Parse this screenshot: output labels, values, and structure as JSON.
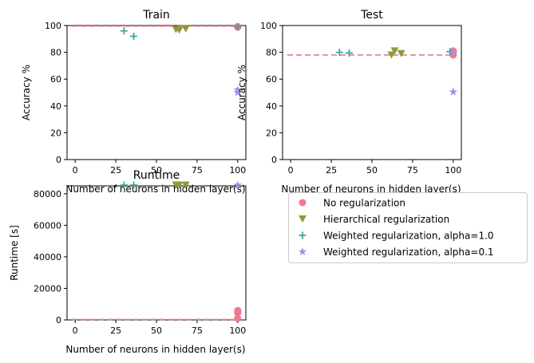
{
  "chart_data": [
    {
      "type": "scatter",
      "title": "Train",
      "xlabel": "Number of neurons in hidden layer(s)",
      "ylabel": "Accuracy %",
      "xlim": [
        -5,
        105
      ],
      "ylim": [
        0,
        100
      ],
      "xticks": [
        "0",
        "25",
        "50",
        "75",
        "100"
      ],
      "yticks": [
        "0",
        "20",
        "40",
        "60",
        "80",
        "100"
      ],
      "reference_line": 99.5,
      "series": [
        {
          "name": "No regularization",
          "marker": "circle",
          "color": "#f0788c",
          "x": [
            100,
            100,
            100
          ],
          "y": [
            99,
            98.8,
            99.2
          ]
        },
        {
          "name": "Hierarchical regularization",
          "marker": "triangle-down",
          "color": "#8c9a3c",
          "x": [
            62,
            64,
            68
          ],
          "y": [
            97,
            96.5,
            97.5
          ]
        },
        {
          "name": "Weighted regularization, alpha=1.0",
          "marker": "plus",
          "color": "#3aa7a3",
          "x": [
            30,
            36,
            100
          ],
          "y": [
            96,
            92,
            99
          ]
        },
        {
          "name": "Weighted regularization, alpha=0.1",
          "marker": "star",
          "color": "#a98de8",
          "x": [
            100,
            100
          ],
          "y": [
            52,
            50
          ]
        }
      ]
    },
    {
      "type": "scatter",
      "title": "Test",
      "xlabel": "Number of neurons in hidden layer(s)",
      "ylabel": "Accuracy %",
      "xlim": [
        -5,
        105
      ],
      "ylim": [
        0,
        100
      ],
      "xticks": [
        "0",
        "25",
        "50",
        "75",
        "100"
      ],
      "yticks": [
        "0",
        "20",
        "40",
        "60",
        "80",
        "100"
      ],
      "reference_line": 78,
      "series": [
        {
          "name": "No regularization",
          "marker": "circle",
          "color": "#f0788c",
          "x": [
            100,
            100,
            100
          ],
          "y": [
            78,
            80,
            81
          ]
        },
        {
          "name": "Hierarchical regularization",
          "marker": "triangle-down",
          "color": "#8c9a3c",
          "x": [
            62,
            64,
            68
          ],
          "y": [
            78,
            81,
            79
          ]
        },
        {
          "name": "Weighted regularization, alpha=1.0",
          "marker": "plus",
          "color": "#3aa7a3",
          "x": [
            30,
            36,
            98
          ],
          "y": [
            80,
            79.5,
            80.5
          ]
        },
        {
          "name": "Weighted regularization, alpha=0.1",
          "marker": "star",
          "color": "#a98de8",
          "x": [
            100,
            100
          ],
          "y": [
            50.5,
            80
          ]
        }
      ]
    },
    {
      "type": "scatter",
      "title": "Runtime",
      "xlabel": "Number of neurons in hidden layer(s)",
      "ylabel": "Runtime [s]",
      "xlim": [
        -5,
        105
      ],
      "ylim": [
        0,
        85000
      ],
      "xticks": [
        "0",
        "25",
        "50",
        "75",
        "100"
      ],
      "yticks": [
        "0",
        "20000",
        "40000",
        "60000",
        "80000"
      ],
      "reference_line": 300,
      "series": [
        {
          "name": "No regularization",
          "marker": "circle",
          "color": "#f0788c",
          "x": [
            100,
            100,
            100,
            100
          ],
          "y": [
            6000,
            5000,
            4500,
            1000
          ]
        },
        {
          "name": "Hierarchical regularization",
          "marker": "triangle-down",
          "color": "#8c9a3c",
          "x": [
            62,
            64,
            68
          ],
          "y": [
            85500,
            85500,
            85500
          ]
        },
        {
          "name": "Weighted regularization, alpha=1.0",
          "marker": "plus",
          "color": "#3aa7a3",
          "x": [
            30,
            36
          ],
          "y": [
            85500,
            85500
          ]
        },
        {
          "name": "Weighted regularization, alpha=0.1",
          "marker": "star",
          "color": "#a98de8",
          "x": [
            100
          ],
          "y": [
            85500
          ]
        }
      ]
    }
  ],
  "legend": {
    "placement": "lower-right",
    "items": [
      {
        "label": "No regularization",
        "marker": "circle",
        "color": "#f0788c"
      },
      {
        "label": "Hierarchical regularization",
        "marker": "triangle-down",
        "color": "#8c9a3c"
      },
      {
        "label": "Weighted regularization, alpha=1.0",
        "marker": "plus",
        "color": "#3aa7a3"
      },
      {
        "label": "Weighted regularization, alpha=0.1",
        "marker": "star",
        "color": "#a98de8"
      }
    ]
  },
  "reference_line_color": "#f0788c"
}
